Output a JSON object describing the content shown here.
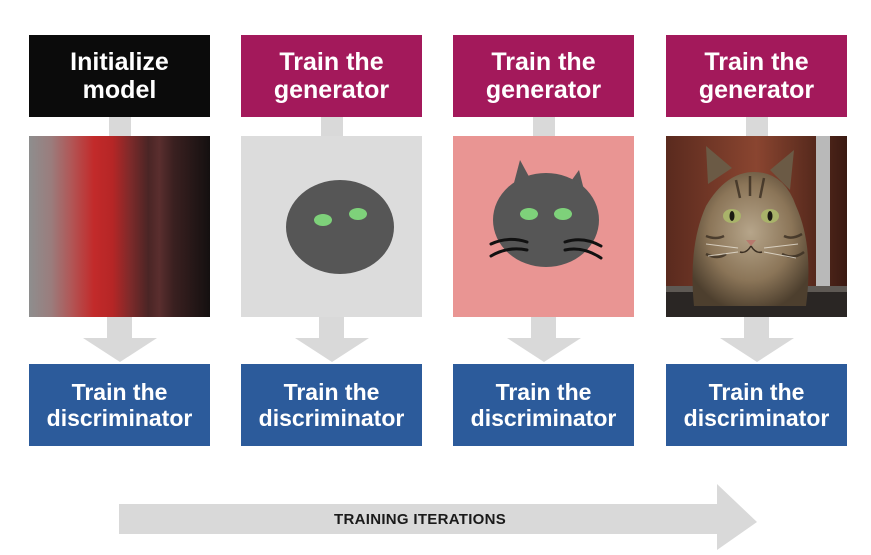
{
  "columns": [
    {
      "top_label": "Initialize\nmodel",
      "top_color": "#0b0b0b",
      "image": "noise-gradient",
      "bottom_label": "Train the\ndiscriminator"
    },
    {
      "top_label": "Train the\ngenerator",
      "top_color": "#a3195b",
      "image": "simple-cat-face",
      "bottom_label": "Train the\ndiscriminator"
    },
    {
      "top_label": "Train the\ngenerator",
      "top_color": "#a3195b",
      "image": "cat-face-with-ears-whiskers",
      "bottom_label": "Train the\ndiscriminator"
    },
    {
      "top_label": "Train the\ngenerator",
      "top_color": "#a3195b",
      "image": "realistic-tabby-cat-photo",
      "bottom_label": "Train the\ndiscriminator"
    }
  ],
  "colors": {
    "discriminator_box": "#2c5b9b",
    "connector": "#d9d9d9"
  },
  "timeline": {
    "label": "TRAINING ITERATIONS",
    "icon": "right-arrow-icon"
  }
}
